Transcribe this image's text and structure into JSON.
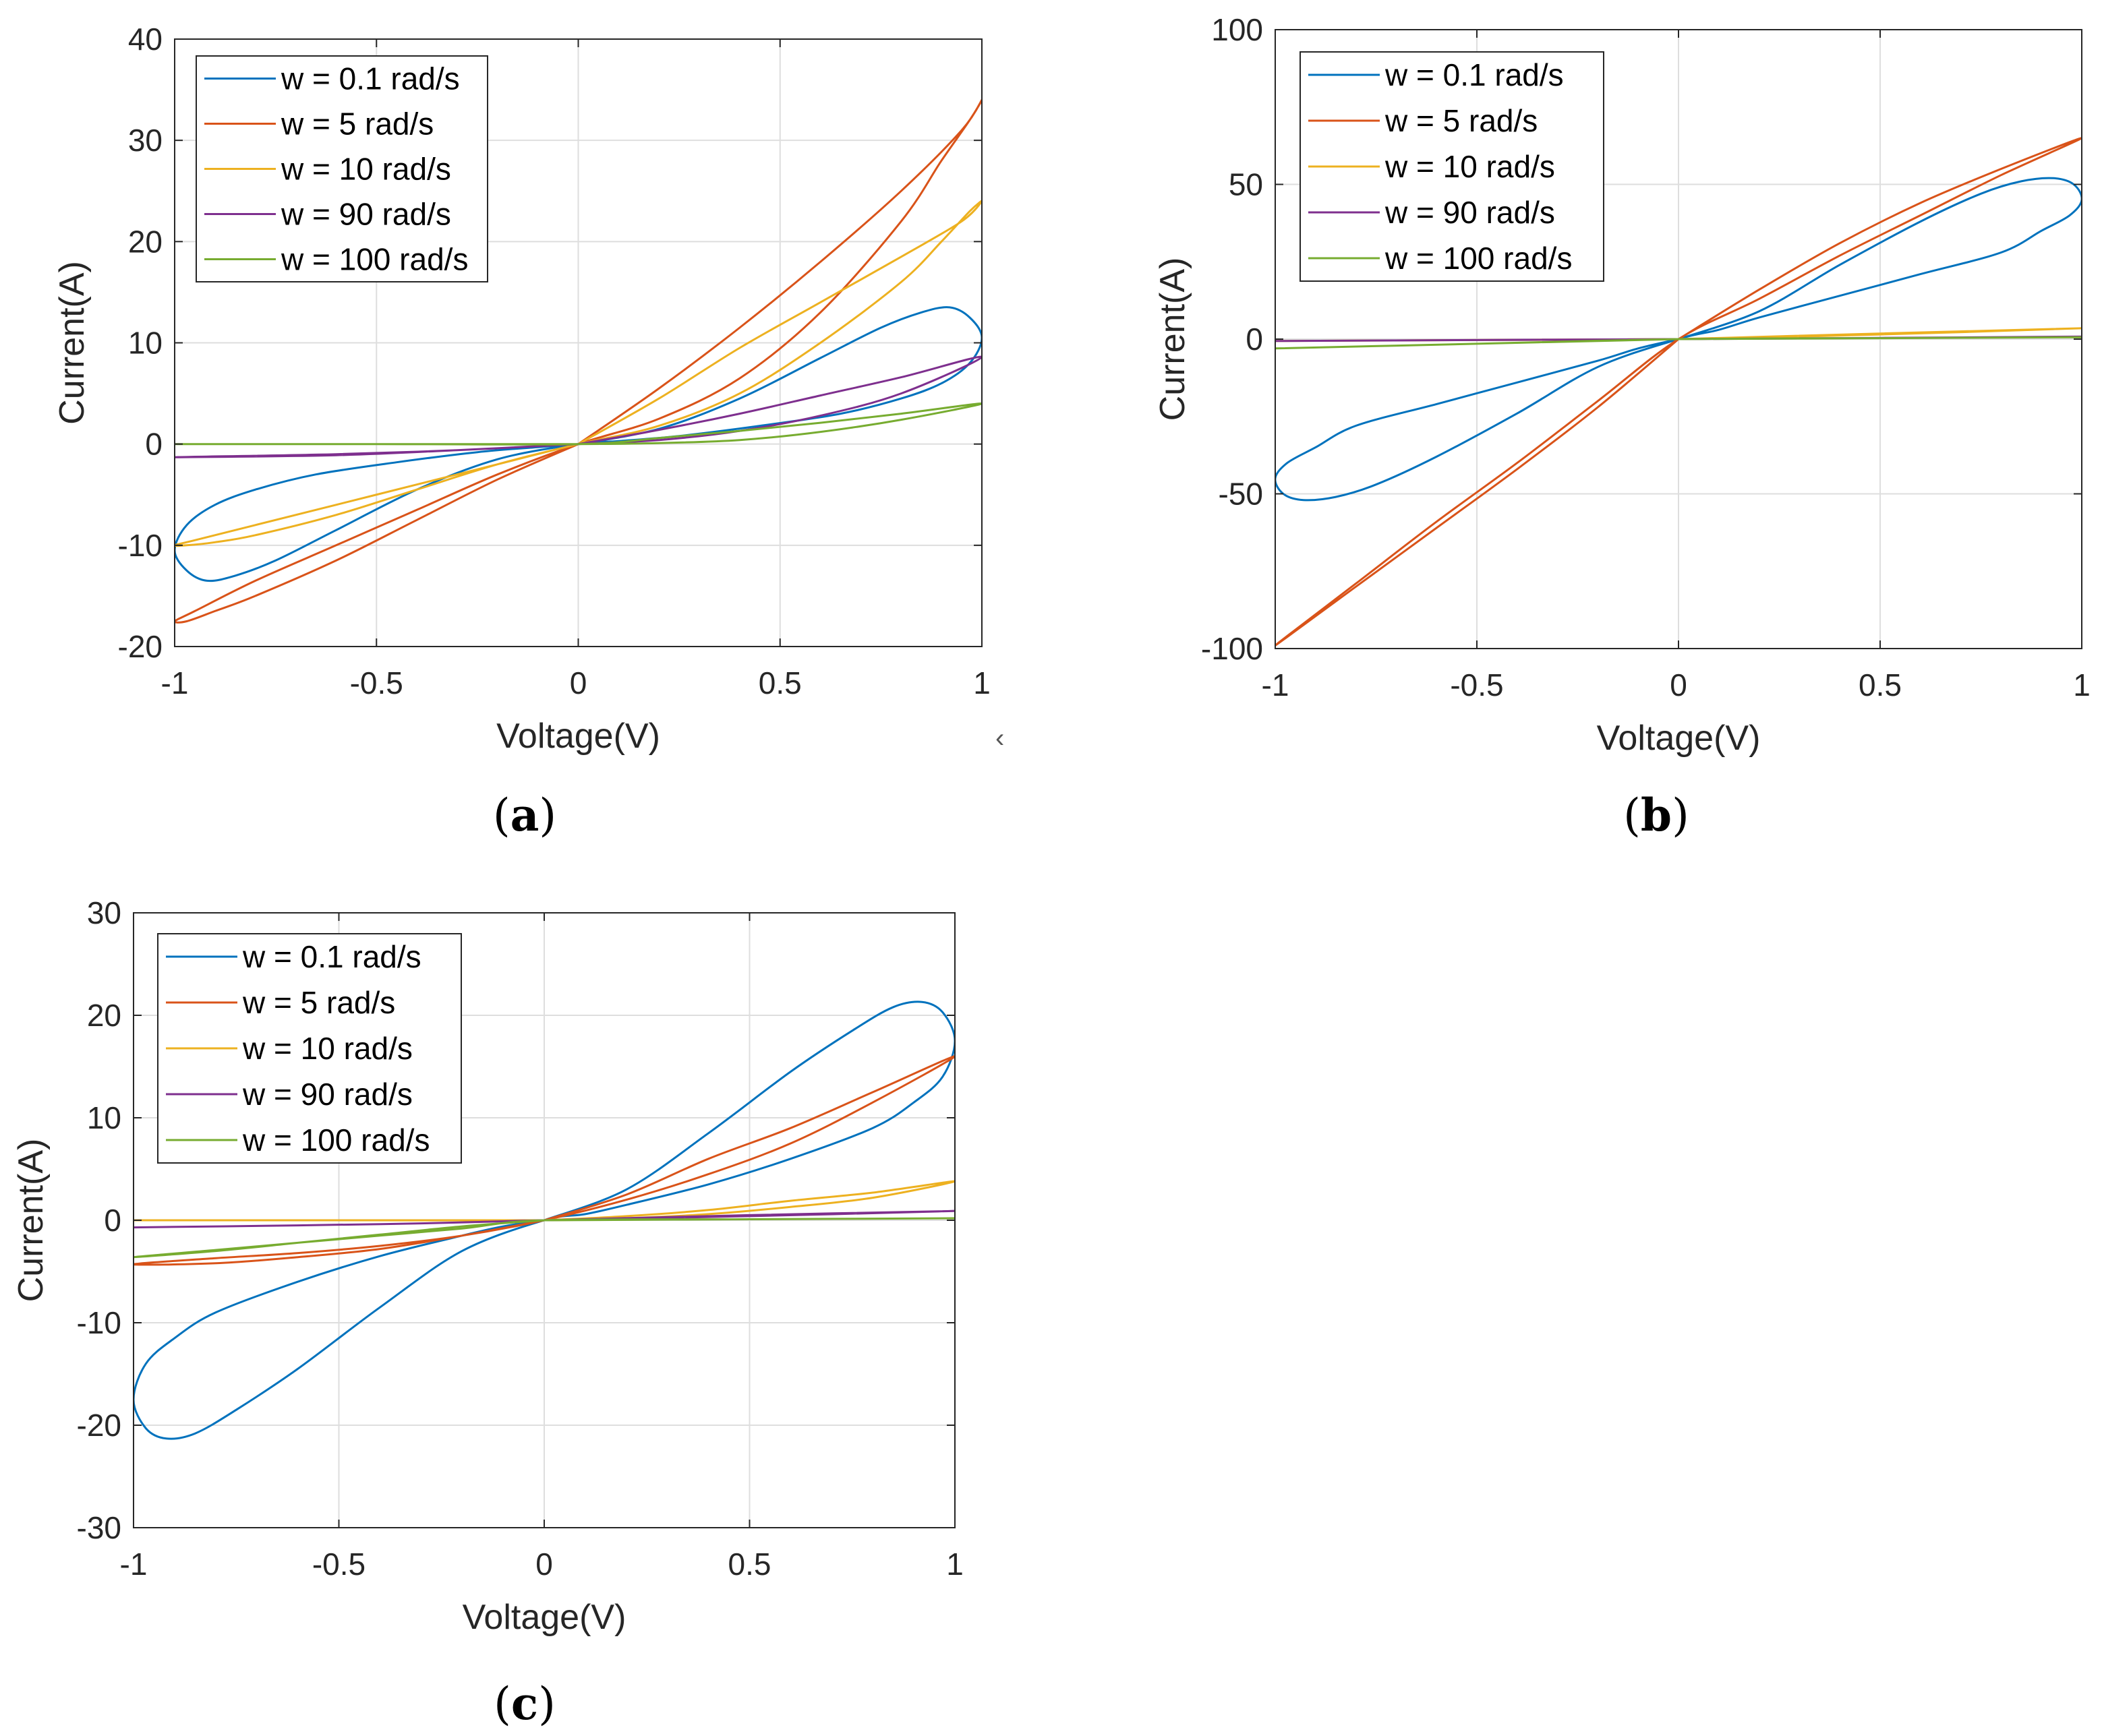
{
  "colors": {
    "series": [
      "#0072BD",
      "#D95319",
      "#EDB120",
      "#7E2F8E",
      "#77AC30"
    ],
    "grid": "#dedede",
    "axis": "#262626"
  },
  "stray_mark": "‹",
  "chart_data": [
    {
      "panel": "a",
      "panel_label": "(a)",
      "type": "line",
      "xlabel": "Voltage(V)",
      "ylabel": "Current(A)",
      "xlim": [
        -1,
        1
      ],
      "ylim": [
        -20,
        40
      ],
      "xticks": [
        -1,
        -0.5,
        0,
        0.5,
        1
      ],
      "xtick_labels": [
        "-1",
        "-0.5",
        "0",
        "0.5",
        "1"
      ],
      "yticks": [
        -20,
        -10,
        0,
        10,
        20,
        30,
        40
      ],
      "ytick_labels": [
        "-20",
        "-10",
        "0",
        "10",
        "20",
        "30",
        "40"
      ],
      "grid": true,
      "legend": "top-left",
      "series": [
        {
          "name": "w = 0.1 rad/s",
          "x": [
            0,
            0.2,
            0.4,
            0.6,
            0.75,
            0.85,
            0.92,
            0.97,
            1,
            0.97,
            0.9,
            0.8,
            0.65,
            0.45,
            0.25,
            0.1,
            0,
            -0.2,
            -0.4,
            -0.6,
            -0.75,
            -0.85,
            -0.92,
            -0.97,
            -1,
            -0.97,
            -0.9,
            -0.8,
            -0.65,
            -0.45,
            -0.25,
            -0.1,
            0
          ],
          "y": [
            0,
            1.5,
            4.5,
            8.5,
            11.5,
            13,
            13.5,
            12.5,
            10.5,
            8,
            6,
            4.5,
            3,
            1.8,
            0.8,
            0.3,
            0,
            -1.5,
            -4.5,
            -8.5,
            -11.5,
            -13,
            -13.5,
            -12.5,
            -10.5,
            -8,
            -6,
            -4.5,
            -3,
            -1.8,
            -0.8,
            -0.3,
            0
          ]
        },
        {
          "name": "w = 5 rad/s",
          "x": [
            0,
            0.2,
            0.4,
            0.6,
            0.8,
            0.95,
            1,
            0.97,
            0.9,
            0.8,
            0.6,
            0.4,
            0.2,
            0,
            -0.2,
            -0.4,
            -0.6,
            -0.8,
            -0.95,
            -1,
            -0.97,
            -0.9,
            -0.8,
            -0.6,
            -0.4,
            -0.2,
            0
          ],
          "y": [
            0,
            5.5,
            11.5,
            18,
            25,
            31,
            34,
            32,
            28,
            22,
            13,
            6.5,
            2.5,
            0,
            -3,
            -6.5,
            -10,
            -13.5,
            -16.5,
            -17.5,
            -17.5,
            -16.5,
            -15,
            -11.5,
            -7.5,
            -3.5,
            0
          ]
        },
        {
          "name": "w = 10 rad/s",
          "x": [
            0,
            0.2,
            0.4,
            0.6,
            0.8,
            0.95,
            1,
            0.97,
            0.9,
            0.8,
            0.6,
            0.4,
            0.2,
            0,
            -0.2,
            -0.4,
            -0.6,
            -0.8,
            -0.95,
            -1,
            -0.97,
            -0.9,
            -0.8,
            -0.6,
            -0.4,
            -0.2,
            0
          ],
          "y": [
            0,
            4.5,
            9.5,
            14,
            18.5,
            22,
            24,
            23,
            20,
            16,
            10,
            5,
            1.8,
            0,
            -2,
            -4,
            -6,
            -8,
            -9.5,
            -10,
            -10,
            -9.7,
            -9,
            -7,
            -4.5,
            -2,
            0
          ]
        },
        {
          "name": "w = 90 rad/s",
          "x": [
            0,
            0.2,
            0.4,
            0.6,
            0.8,
            1,
            0.8,
            0.6,
            0.4,
            0.2,
            0,
            -0.3,
            -0.6,
            -1,
            -0.6,
            -0.3,
            0
          ],
          "y": [
            0,
            1.4,
            3,
            4.8,
            6.6,
            8.6,
            5,
            2.8,
            1.3,
            0.4,
            0,
            -0.6,
            -1,
            -1.3,
            -1.1,
            -0.6,
            0
          ]
        },
        {
          "name": "w = 100 rad/s",
          "x": [
            -1,
            -0.5,
            0,
            0.2,
            0.4,
            0.6,
            0.8,
            1,
            0.8,
            0.6,
            0.4,
            0.2,
            0,
            -0.5,
            -1
          ],
          "y": [
            0,
            0,
            0,
            0.6,
            1.3,
            2.1,
            3,
            4,
            2.4,
            1.2,
            0.4,
            0.1,
            0,
            0,
            0
          ]
        }
      ]
    },
    {
      "panel": "b",
      "panel_label": "(b)",
      "type": "line",
      "xlabel": "Voltage(V)",
      "ylabel": "Current(A)",
      "xlim": [
        -1,
        1
      ],
      "ylim": [
        -100,
        100
      ],
      "xticks": [
        -1,
        -0.5,
        0,
        0.5,
        1
      ],
      "xtick_labels": [
        "-1",
        "-0.5",
        "0",
        "0.5",
        "1"
      ],
      "yticks": [
        -100,
        -50,
        0,
        50,
        100
      ],
      "ytick_labels": [
        "-100",
        "-50",
        "0",
        "50",
        "100"
      ],
      "grid": true,
      "legend": "top-left",
      "series": [
        {
          "name": "w = 0.1 rad/s",
          "x": [
            0,
            0.2,
            0.4,
            0.6,
            0.75,
            0.85,
            0.93,
            0.98,
            1,
            0.97,
            0.9,
            0.8,
            0.6,
            0.4,
            0.2,
            0.1,
            0,
            -0.2,
            -0.4,
            -0.6,
            -0.75,
            -0.85,
            -0.93,
            -0.98,
            -1,
            -0.97,
            -0.9,
            -0.8,
            -0.6,
            -0.4,
            -0.2,
            -0.1,
            0
          ],
          "y": [
            0,
            9,
            24,
            38,
            47,
            51,
            52,
            50,
            45,
            40,
            35,
            28,
            21,
            14,
            7,
            3,
            0,
            -9,
            -24,
            -38,
            -47,
            -51,
            -52,
            -50,
            -45,
            -40,
            -35,
            -28,
            -21,
            -14,
            -7,
            -3,
            0
          ]
        },
        {
          "name": "w = 5 rad/s",
          "x": [
            0,
            0.2,
            0.4,
            0.6,
            0.8,
            1,
            0.8,
            0.6,
            0.4,
            0.2,
            0,
            -0.2,
            -0.4,
            -0.6,
            -0.8,
            -1,
            -0.8,
            -0.6,
            -0.4,
            -0.2,
            0
          ],
          "y": [
            0,
            16,
            31,
            44,
            55,
            65,
            53,
            40,
            27,
            13,
            0,
            -20,
            -40,
            -59,
            -79,
            -99,
            -80,
            -61,
            -42,
            -22,
            0
          ]
        },
        {
          "name": "w = 10 rad/s",
          "x": [
            0,
            0.5,
            1,
            0.5,
            0,
            -0.5,
            -1,
            -0.5,
            0
          ],
          "y": [
            0,
            1.8,
            3.5,
            1.5,
            0,
            -0.3,
            -0.6,
            -0.3,
            0
          ]
        },
        {
          "name": "w = 90 rad/s",
          "x": [
            0,
            0.5,
            1,
            0.5,
            0,
            -0.5,
            -1,
            -0.5,
            0
          ],
          "y": [
            0,
            0.4,
            0.8,
            0.4,
            0,
            -0.3,
            -0.6,
            -0.3,
            0
          ]
        },
        {
          "name": "w = 100 rad/s",
          "x": [
            0,
            0.5,
            1,
            0.5,
            0,
            -0.5,
            -1,
            -0.5,
            0
          ],
          "y": [
            0,
            0.3,
            0.6,
            0.3,
            0,
            -1.5,
            -3,
            -1.5,
            0
          ]
        }
      ]
    },
    {
      "panel": "c",
      "panel_label": "(c)",
      "type": "line",
      "xlabel": "Voltage(V)",
      "ylabel": "Current(A)",
      "xlim": [
        -1,
        1
      ],
      "ylim": [
        -30,
        30
      ],
      "xticks": [
        -1,
        -0.5,
        0,
        0.5,
        1
      ],
      "xtick_labels": [
        "-1",
        "-0.5",
        "0",
        "0.5",
        "1"
      ],
      "yticks": [
        -30,
        -20,
        -10,
        0,
        10,
        20,
        30
      ],
      "ytick_labels": [
        "-30",
        "-20",
        "-10",
        "0",
        "10",
        "20",
        "30"
      ],
      "grid": true,
      "legend": "top-left",
      "series": [
        {
          "name": "w = 0.1 rad/s",
          "x": [
            0,
            0.2,
            0.4,
            0.6,
            0.75,
            0.85,
            0.92,
            0.97,
            1,
            0.97,
            0.9,
            0.8,
            0.6,
            0.4,
            0.2,
            0.1,
            0,
            -0.2,
            -0.4,
            -0.6,
            -0.75,
            -0.85,
            -0.92,
            -0.97,
            -1,
            -0.97,
            -0.9,
            -0.8,
            -0.6,
            -0.4,
            -0.2,
            -0.1,
            0
          ],
          "y": [
            0,
            3,
            8.5,
            14.5,
            18.5,
            20.8,
            21.3,
            20.3,
            17.5,
            14,
            11.5,
            9,
            6,
            3.5,
            1.5,
            0.6,
            0,
            -3,
            -8.5,
            -14.5,
            -18.5,
            -20.8,
            -21.3,
            -20.3,
            -17.5,
            -14,
            -11.5,
            -9,
            -6,
            -3.5,
            -1.5,
            -0.6,
            0
          ]
        },
        {
          "name": "w = 5 rad/s",
          "x": [
            0,
            0.2,
            0.4,
            0.6,
            0.8,
            1,
            0.8,
            0.6,
            0.4,
            0.2,
            0,
            -0.2,
            -0.4,
            -0.6,
            -0.8,
            -1,
            -0.8,
            -0.6,
            -0.4,
            -0.2,
            0
          ],
          "y": [
            0,
            2.5,
            6,
            9,
            12.5,
            16,
            11.5,
            7.5,
            4.5,
            2,
            0,
            -1.5,
            -2.5,
            -3.2,
            -3.7,
            -4.3,
            -4.2,
            -3.6,
            -2.8,
            -1.5,
            0
          ]
        },
        {
          "name": "w = 10 rad/s",
          "x": [
            0,
            0.2,
            0.4,
            0.6,
            0.8,
            1,
            0.8,
            0.6,
            0.4,
            0.2,
            0,
            -0.5,
            -1,
            -0.5,
            0
          ],
          "y": [
            0,
            0.4,
            1,
            1.9,
            2.7,
            3.8,
            2.2,
            1.3,
            0.6,
            0.2,
            0,
            0,
            0,
            0,
            0
          ]
        },
        {
          "name": "w = 90 rad/s",
          "x": [
            0,
            0.5,
            1,
            0.5,
            0,
            -0.3,
            -0.6,
            -1,
            -0.6,
            -0.3,
            0
          ],
          "y": [
            0,
            0.5,
            0.9,
            0.4,
            0,
            -0.3,
            -0.5,
            -0.7,
            -0.5,
            -0.3,
            0
          ]
        },
        {
          "name": "w = 100 rad/s",
          "x": [
            0,
            0.5,
            1,
            0.5,
            0,
            -0.2,
            -0.4,
            -0.6,
            -0.8,
            -1,
            -0.8,
            -0.6,
            -0.4,
            -0.2,
            0
          ],
          "y": [
            0,
            0.1,
            0.2,
            0.1,
            0,
            -0.8,
            -1.5,
            -2.2,
            -2.9,
            -3.6,
            -3,
            -2.2,
            -1.4,
            -0.6,
            0
          ]
        }
      ]
    }
  ]
}
